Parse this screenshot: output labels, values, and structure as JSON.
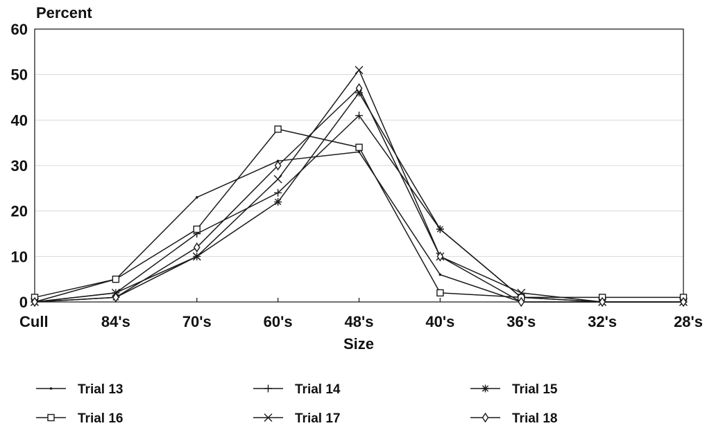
{
  "chart_data": {
    "type": "line",
    "title": "",
    "ylabel": "Percent",
    "xlabel": "Size",
    "categories": [
      "Cull",
      "84's",
      "70's",
      "60's",
      "48's",
      "40's",
      "36's",
      "32's",
      "28's"
    ],
    "ylim": [
      0,
      60
    ],
    "yticks": [
      0,
      10,
      20,
      30,
      40,
      50,
      60
    ],
    "grid": true,
    "legend_position": "bottom",
    "series": [
      {
        "name": "Trial 13",
        "marker": "none",
        "values": [
          0,
          5,
          23,
          31,
          33,
          6,
          0,
          0,
          0
        ]
      },
      {
        "name": "Trial 14",
        "marker": "plus",
        "values": [
          0,
          2,
          15,
          24,
          41,
          16,
          1,
          0,
          0
        ]
      },
      {
        "name": "Trial 15",
        "marker": "asterisk",
        "values": [
          0,
          1,
          10,
          22,
          46,
          16,
          1,
          0,
          0
        ]
      },
      {
        "name": "Trial 16",
        "marker": "square",
        "values": [
          1,
          5,
          16,
          38,
          34,
          2,
          1,
          1,
          1
        ]
      },
      {
        "name": "Trial 17",
        "marker": "x",
        "values": [
          0,
          2,
          10,
          27,
          51,
          10,
          2,
          0,
          0
        ]
      },
      {
        "name": "Trial 18",
        "marker": "diamond",
        "values": [
          0,
          1,
          12,
          30,
          47,
          10,
          0,
          0,
          0
        ]
      }
    ]
  }
}
